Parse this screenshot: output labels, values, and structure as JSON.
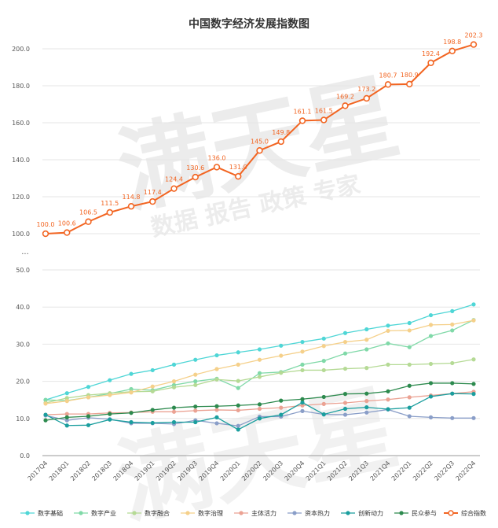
{
  "chart_data": {
    "type": "line",
    "title": "中国数字经济发展指数图",
    "watermark": {
      "main": "满天星",
      "sub": "数据 报告 政策 专家"
    },
    "categories": [
      "2017Q4",
      "2018Q1",
      "2018Q2",
      "2018Q3",
      "2018Q4",
      "2019Q1",
      "2019Q2",
      "2019Q3",
      "2019Q4",
      "2020Q1",
      "2020Q2",
      "2020Q3",
      "2020Q4",
      "2021Q1",
      "2021Q2",
      "2021Q3",
      "2021Q4",
      "2022Q1",
      "2022Q2",
      "2022Q3",
      "2022Q4"
    ],
    "upper_panel": {
      "ylim": [
        100,
        200
      ],
      "yticks": [
        "100.0",
        "120.0",
        "140.0",
        "160.0",
        "180.0",
        "200.0"
      ],
      "series": [
        {
          "name": "综合指数",
          "color": "#f26522",
          "values": [
            100.0,
            100.6,
            106.5,
            111.5,
            114.8,
            117.4,
            124.4,
            130.6,
            136.0,
            131.0,
            145.0,
            149.8,
            161.1,
            161.5,
            169.2,
            173.2,
            180.7,
            180.9,
            192.4,
            198.8,
            202.3
          ],
          "labels": [
            "100.0",
            "100.6",
            "106.5",
            "111.5",
            "114.8",
            "117.4",
            "124.4",
            "130.6",
            "136.0",
            "131.0",
            "145.0",
            "149.8",
            "161.1",
            "161.5",
            "169.2",
            "173.2",
            "180.7",
            "180.9",
            "192.4",
            "198.8",
            "202.3"
          ]
        }
      ]
    },
    "lower_panel": {
      "ylim": [
        0,
        50
      ],
      "yticks": [
        "0.0",
        "10.0",
        "20.0",
        "30.0",
        "40.0",
        "50.0"
      ],
      "break_marker": "...",
      "series": [
        {
          "name": "数字基础",
          "color": "#4fd6d6",
          "values": [
            15.0,
            16.8,
            18.5,
            20.3,
            22.0,
            23.0,
            24.5,
            25.8,
            27.0,
            27.8,
            28.6,
            29.6,
            30.6,
            31.5,
            33.0,
            34.0,
            35.0,
            35.7,
            37.8,
            38.9,
            40.7
          ]
        },
        {
          "name": "数字产业",
          "color": "#80d9a8",
          "values": [
            15.0,
            14.8,
            15.7,
            16.7,
            17.9,
            17.6,
            19.0,
            20.0,
            20.7,
            18.2,
            22.2,
            22.5,
            24.5,
            25.5,
            27.5,
            28.6,
            30.2,
            29.2,
            32.2,
            33.7,
            36.5
          ]
        },
        {
          "name": "数字融合",
          "color": "#b5da95",
          "values": [
            14.2,
            15.5,
            16.3,
            16.8,
            17.2,
            17.3,
            18.4,
            19.0,
            20.5,
            20.1,
            21.2,
            22.3,
            23.0,
            23.0,
            23.4,
            23.6,
            24.5,
            24.5,
            24.7,
            24.9,
            25.9
          ]
        },
        {
          "name": "数字治理",
          "color": "#f5d08a",
          "values": [
            14.0,
            14.7,
            15.7,
            16.3,
            17.0,
            18.6,
            20.0,
            21.8,
            23.3,
            24.5,
            25.8,
            26.9,
            28.0,
            29.5,
            30.6,
            31.2,
            33.6,
            33.7,
            35.2,
            35.3,
            36.4
          ]
        },
        {
          "name": "主体活力",
          "color": "#eba293",
          "values": [
            11.0,
            11.2,
            11.2,
            11.5,
            11.6,
            11.8,
            11.8,
            12.1,
            12.3,
            12.2,
            12.6,
            12.9,
            13.5,
            13.9,
            14.2,
            14.7,
            15.1,
            15.7,
            16.2,
            16.7,
            17.2
          ]
        },
        {
          "name": "资本热力",
          "color": "#8a9ec8",
          "values": [
            10.8,
            9.5,
            10.2,
            9.8,
            8.7,
            8.7,
            8.5,
            9.5,
            8.7,
            8.0,
            10.5,
            10.5,
            12.0,
            11.1,
            11.0,
            11.6,
            12.4,
            10.6,
            10.3,
            10.1,
            10.1
          ]
        },
        {
          "name": "创新动力",
          "color": "#1a9e9e",
          "values": [
            11.0,
            8.1,
            8.2,
            9.7,
            9.0,
            8.8,
            9.0,
            9.0,
            10.3,
            7.0,
            10.0,
            11.0,
            14.3,
            11.1,
            12.6,
            13.0,
            12.5,
            12.9,
            15.9,
            16.7,
            16.6
          ]
        },
        {
          "name": "民众参与",
          "color": "#2d8a4e",
          "values": [
            9.5,
            10.3,
            10.6,
            11.2,
            11.5,
            12.3,
            12.9,
            13.2,
            13.3,
            13.5,
            13.8,
            14.8,
            15.2,
            15.8,
            16.6,
            16.7,
            17.3,
            18.8,
            19.5,
            19.5,
            19.3
          ]
        }
      ]
    },
    "legend": {
      "position": "bottom",
      "items": [
        "数字基础",
        "数字产业",
        "数字融合",
        "数字治理",
        "主体活力",
        "资本热力",
        "创新动力",
        "民众参与",
        "综合指数"
      ]
    }
  }
}
